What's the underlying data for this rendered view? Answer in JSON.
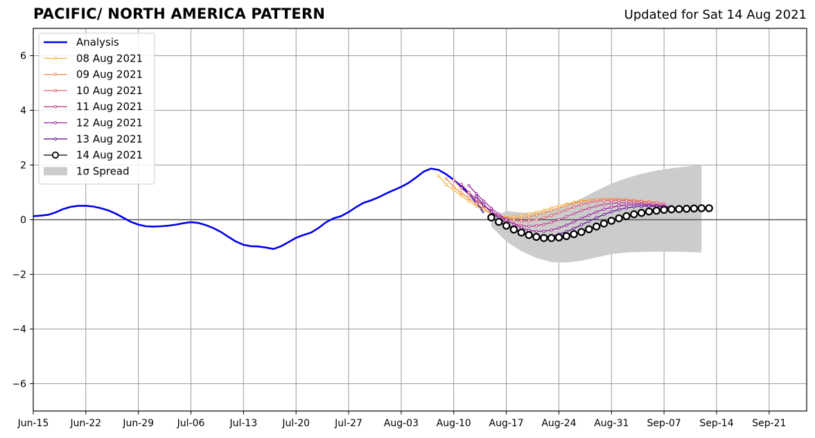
{
  "header": {
    "title": "PACIFIC/ NORTH AMERICA PATTERN",
    "updated": "Updated for Sat 14 Aug 2021"
  },
  "colors": {
    "analysis": "#0000ee",
    "spread": "#cccccc",
    "grid": "#999999",
    "forecasts": [
      "#f5b642",
      "#f0853f",
      "#e0606e",
      "#c0408a",
      "#9b1f9e",
      "#5e1490",
      "#000000"
    ]
  },
  "chart_data": {
    "type": "line",
    "x_axis": {
      "ticks": [
        "Jun-15",
        "Jun-22",
        "Jun-29",
        "Jul-06",
        "Jul-13",
        "Jul-20",
        "Jul-27",
        "Aug-03",
        "Aug-10",
        "Aug-17",
        "Aug-24",
        "Aug-31",
        "Sep-07",
        "Sep-14",
        "Sep-21"
      ],
      "range": [
        "2021-06-15",
        "2021-09-26"
      ]
    },
    "y_axis": {
      "ticks": [
        "6",
        "4",
        "2",
        "0",
        "−2",
        "−4",
        "−6"
      ],
      "tick_values": [
        6,
        4,
        2,
        0,
        -2,
        -4,
        -6
      ],
      "ylim": [
        -7,
        7
      ]
    },
    "grid": true,
    "zero_line": true,
    "legend_position": "upper-left",
    "legend": [
      "Analysis",
      "08 Aug 2021",
      "09 Aug 2021",
      "10 Aug 2021",
      "11 Aug 2021",
      "12 Aug 2021",
      "13 Aug 2021",
      "14 Aug 2021",
      "1σ Spread"
    ],
    "analysis": {
      "name": "Analysis",
      "x": [
        "2021-06-15",
        "2021-06-16",
        "2021-06-17",
        "2021-06-18",
        "2021-06-19",
        "2021-06-20",
        "2021-06-21",
        "2021-06-22",
        "2021-06-23",
        "2021-06-24",
        "2021-06-25",
        "2021-06-26",
        "2021-06-27",
        "2021-06-28",
        "2021-06-29",
        "2021-06-30",
        "2021-07-01",
        "2021-07-02",
        "2021-07-03",
        "2021-07-04",
        "2021-07-05",
        "2021-07-06",
        "2021-07-07",
        "2021-07-08",
        "2021-07-09",
        "2021-07-10",
        "2021-07-11",
        "2021-07-12",
        "2021-07-13",
        "2021-07-14",
        "2021-07-15",
        "2021-07-16",
        "2021-07-17",
        "2021-07-18",
        "2021-07-19",
        "2021-07-20",
        "2021-07-21",
        "2021-07-22",
        "2021-07-23",
        "2021-07-24",
        "2021-07-25",
        "2021-07-26",
        "2021-07-27",
        "2021-07-28",
        "2021-07-29",
        "2021-07-30",
        "2021-07-31",
        "2021-08-01",
        "2021-08-02",
        "2021-08-03",
        "2021-08-04",
        "2021-08-05",
        "2021-08-06",
        "2021-08-07",
        "2021-08-08",
        "2021-08-09",
        "2021-08-10",
        "2021-08-11",
        "2021-08-12",
        "2021-08-13",
        "2021-08-14"
      ],
      "y": [
        0.13,
        0.15,
        0.18,
        0.27,
        0.39,
        0.47,
        0.51,
        0.51,
        0.48,
        0.42,
        0.34,
        0.22,
        0.07,
        -0.08,
        -0.18,
        -0.24,
        -0.25,
        -0.24,
        -0.22,
        -0.18,
        -0.13,
        -0.09,
        -0.12,
        -0.2,
        -0.31,
        -0.45,
        -0.63,
        -0.8,
        -0.92,
        -0.97,
        -0.98,
        -1.02,
        -1.07,
        -0.97,
        -0.82,
        -0.66,
        -0.56,
        -0.47,
        -0.3,
        -0.09,
        0.05,
        0.13,
        0.28,
        0.46,
        0.62,
        0.71,
        0.82,
        0.96,
        1.08,
        1.2,
        1.35,
        1.55,
        1.76,
        1.87,
        1.82,
        1.66,
        1.45,
        1.22,
        0.96,
        0.63,
        0.26
      ]
    },
    "forecasts": [
      {
        "name": "08 Aug 2021",
        "start": "2021-08-08",
        "y": [
          1.6,
          1.28,
          1.08,
          0.88,
          0.68,
          0.5,
          0.34,
          0.22,
          0.14,
          0.1,
          0.11,
          0.15,
          0.21,
          0.28,
          0.35,
          0.43,
          0.51,
          0.58,
          0.64,
          0.69,
          0.72,
          0.74,
          0.75,
          0.75,
          0.74,
          0.72,
          0.7,
          0.68,
          0.65
        ]
      },
      {
        "name": "09 Aug 2021",
        "start": "2021-08-09",
        "y": [
          1.5,
          1.2,
          0.98,
          0.78,
          0.58,
          0.4,
          0.25,
          0.13,
          0.06,
          0.04,
          0.06,
          0.1,
          0.17,
          0.25,
          0.34,
          0.43,
          0.52,
          0.6,
          0.66,
          0.71,
          0.74,
          0.76,
          0.76,
          0.75,
          0.73,
          0.71,
          0.68,
          0.66,
          0.63
        ]
      },
      {
        "name": "10 Aug 2021",
        "start": "2021-08-10",
        "y": [
          1.45,
          1.15,
          0.92,
          0.7,
          0.5,
          0.3,
          0.15,
          0.04,
          -0.02,
          -0.05,
          -0.04,
          0.0,
          0.07,
          0.16,
          0.26,
          0.36,
          0.46,
          0.55,
          0.62,
          0.67,
          0.7,
          0.71,
          0.71,
          0.7,
          0.68,
          0.66,
          0.64,
          0.62,
          0.6
        ]
      },
      {
        "name": "11 Aug 2021",
        "start": "2021-08-11",
        "y": [
          1.3,
          1.0,
          0.75,
          0.52,
          0.32,
          0.12,
          -0.04,
          -0.15,
          -0.22,
          -0.24,
          -0.22,
          -0.17,
          -0.1,
          0.0,
          0.11,
          0.22,
          0.33,
          0.42,
          0.5,
          0.56,
          0.6,
          0.62,
          0.62,
          0.61,
          0.59,
          0.57,
          0.55,
          0.53
        ]
      },
      {
        "name": "12 Aug 2021",
        "start": "2021-08-12",
        "y": [
          1.25,
          0.95,
          0.68,
          0.42,
          0.2,
          0.0,
          -0.17,
          -0.3,
          -0.39,
          -0.43,
          -0.42,
          -0.38,
          -0.3,
          -0.2,
          -0.08,
          0.05,
          0.17,
          0.28,
          0.38,
          0.45,
          0.51,
          0.54,
          0.55,
          0.55,
          0.53,
          0.51,
          0.5,
          0.48
        ]
      },
      {
        "name": "13 Aug 2021",
        "start": "2021-08-13",
        "y": [
          0.85,
          0.55,
          0.28,
          0.06,
          -0.14,
          -0.32,
          -0.46,
          -0.56,
          -0.62,
          -0.63,
          -0.6,
          -0.53,
          -0.44,
          -0.32,
          -0.19,
          -0.06,
          0.07,
          0.19,
          0.29,
          0.37,
          0.43,
          0.47,
          0.49,
          0.49,
          0.48,
          0.46,
          0.44,
          0.43
        ]
      },
      {
        "name": "14 Aug 2021",
        "start": "2021-08-15",
        "y": [
          0.08,
          -0.08,
          -0.22,
          -0.36,
          -0.47,
          -0.56,
          -0.63,
          -0.67,
          -0.67,
          -0.65,
          -0.6,
          -0.53,
          -0.45,
          -0.35,
          -0.25,
          -0.14,
          -0.04,
          0.05,
          0.13,
          0.2,
          0.25,
          0.3,
          0.33,
          0.36,
          0.38,
          0.39,
          0.4,
          0.41,
          0.42,
          0.42
        ]
      }
    ],
    "spread": {
      "name": "1σ Spread",
      "x": [
        "2021-08-15",
        "2021-08-17",
        "2021-08-19",
        "2021-08-21",
        "2021-08-23",
        "2021-08-25",
        "2021-08-27",
        "2021-08-29",
        "2021-08-31",
        "2021-09-02",
        "2021-09-04",
        "2021-09-06",
        "2021-09-08",
        "2021-09-10",
        "2021-09-12"
      ],
      "upper": [
        0.05,
        0.32,
        0.26,
        0.26,
        0.36,
        0.54,
        0.78,
        1.06,
        1.32,
        1.52,
        1.68,
        1.8,
        1.88,
        1.95,
        2.0
      ],
      "lower": [
        -0.25,
        -0.8,
        -1.15,
        -1.4,
        -1.55,
        -1.57,
        -1.5,
        -1.38,
        -1.26,
        -1.2,
        -1.18,
        -1.17,
        -1.17,
        -1.18,
        -1.2
      ]
    }
  }
}
